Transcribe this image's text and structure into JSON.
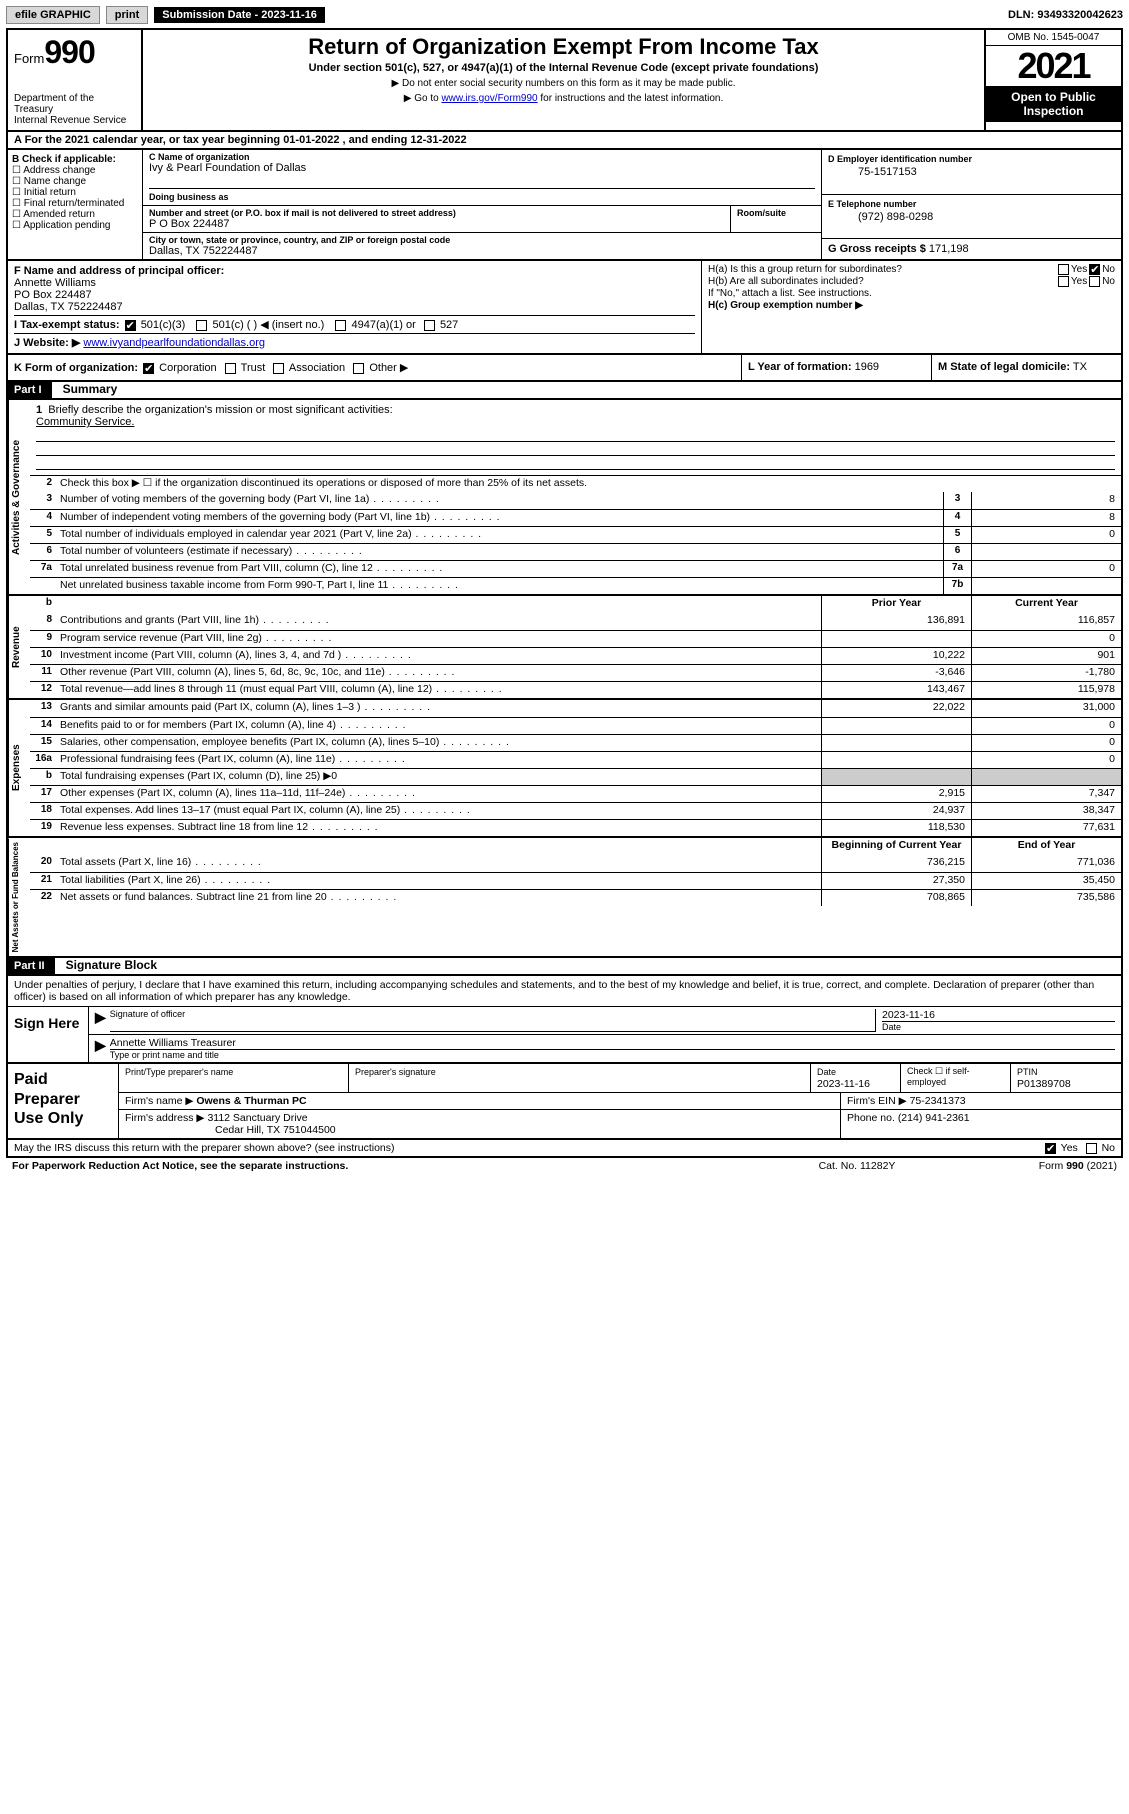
{
  "topbar": {
    "efile": "efile GRAPHIC",
    "print": "print",
    "sub_label": "Submission Date - 2023-11-16",
    "dln": "DLN: 93493320042623"
  },
  "header": {
    "form_word": "Form",
    "form_num": "990",
    "dept": "Department of the Treasury\nInternal Revenue Service",
    "title": "Return of Organization Exempt From Income Tax",
    "sub1": "Under section 501(c), 527, or 4947(a)(1) of the Internal Revenue Code (except private foundations)",
    "sub2": "▶ Do not enter social security numbers on this form as it may be made public.",
    "sub3_pre": "▶ Go to ",
    "sub3_link": "www.irs.gov/Form990",
    "sub3_post": " for instructions and the latest information.",
    "omb": "OMB No. 1545-0047",
    "year": "2021",
    "open": "Open to Public Inspection"
  },
  "lineA": {
    "text": "A For the 2021 calendar year, or tax year beginning 01-01-2022   , and ending 12-31-2022"
  },
  "blockB": {
    "label": "B Check if applicable:",
    "opts": [
      "Address change",
      "Name change",
      "Initial return",
      "Final return/terminated",
      "Amended return",
      "Application pending"
    ]
  },
  "blockC": {
    "name_lbl": "C Name of organization",
    "name": "Ivy & Pearl Foundation of Dallas",
    "dba_lbl": "Doing business as",
    "addr_lbl": "Number and street (or P.O. box if mail is not delivered to street address)",
    "room_lbl": "Room/suite",
    "addr": "P O Box 224487",
    "city_lbl": "City or town, state or province, country, and ZIP or foreign postal code",
    "city": "Dallas, TX  752224487"
  },
  "blockD": {
    "ein_lbl": "D Employer identification number",
    "ein": "75-1517153",
    "tel_lbl": "E Telephone number",
    "tel": "(972) 898-0298",
    "gross_lbl": "G Gross receipts $",
    "gross": "171,198"
  },
  "blockF": {
    "lbl": "F Name and address of principal officer:",
    "l1": "Annette Williams",
    "l2": "PO Box 224487",
    "l3": "Dallas, TX  752224487"
  },
  "blockH": {
    "ha": "H(a)  Is this a group return for subordinates?",
    "hb": "H(b)  Are all subordinates included?",
    "hc": "H(c)  Group exemption number ▶",
    "note": "If \"No,\" attach a list. See instructions."
  },
  "lineI": {
    "lbl": "I   Tax-exempt status:",
    "opt1": "501(c)(3)",
    "opt2": "501(c) (  ) ◀ (insert no.)",
    "opt3": "4947(a)(1) or",
    "opt4": "527"
  },
  "lineJ": {
    "lbl": "J   Website: ▶",
    "val": "www.ivyandpearlfoundationdallas.org"
  },
  "lineK": {
    "lbl": "K Form of organization:",
    "opts": [
      "Corporation",
      "Trust",
      "Association",
      "Other ▶"
    ]
  },
  "lineL": {
    "lbl": "L Year of formation:",
    "val": "1969"
  },
  "lineM": {
    "lbl": "M State of legal domicile:",
    "val": "TX"
  },
  "part1": {
    "hdr": "Part I",
    "title": "Summary",
    "l1": "Briefly describe the organization's mission or most significant activities:",
    "mission": "Community Service.",
    "l2": "Check this box ▶ ☐  if the organization discontinued its operations or disposed of more than 25% of its net assets.",
    "py_hdr": "Prior Year",
    "cy_hdr": "Current Year",
    "boy_hdr": "Beginning of Current Year",
    "eoy_hdr": "End of Year"
  },
  "rows_gov": [
    {
      "n": "3",
      "d": "Number of voting members of the governing body (Part VI, line 1a)",
      "k": "3",
      "v": "8"
    },
    {
      "n": "4",
      "d": "Number of independent voting members of the governing body (Part VI, line 1b)",
      "k": "4",
      "v": "8"
    },
    {
      "n": "5",
      "d": "Total number of individuals employed in calendar year 2021 (Part V, line 2a)",
      "k": "5",
      "v": "0"
    },
    {
      "n": "6",
      "d": "Total number of volunteers (estimate if necessary)",
      "k": "6",
      "v": ""
    },
    {
      "n": "7a",
      "d": "Total unrelated business revenue from Part VIII, column (C), line 12",
      "k": "7a",
      "v": "0"
    },
    {
      "n": "",
      "d": "Net unrelated business taxable income from Form 990-T, Part I, line 11",
      "k": "7b",
      "v": ""
    }
  ],
  "rows_rev": [
    {
      "n": "8",
      "d": "Contributions and grants (Part VIII, line 1h)",
      "v1": "136,891",
      "v2": "116,857"
    },
    {
      "n": "9",
      "d": "Program service revenue (Part VIII, line 2g)",
      "v1": "",
      "v2": "0"
    },
    {
      "n": "10",
      "d": "Investment income (Part VIII, column (A), lines 3, 4, and 7d )",
      "v1": "10,222",
      "v2": "901"
    },
    {
      "n": "11",
      "d": "Other revenue (Part VIII, column (A), lines 5, 6d, 8c, 9c, 10c, and 11e)",
      "v1": "-3,646",
      "v2": "-1,780"
    },
    {
      "n": "12",
      "d": "Total revenue—add lines 8 through 11 (must equal Part VIII, column (A), line 12)",
      "v1": "143,467",
      "v2": "115,978"
    }
  ],
  "rows_exp": [
    {
      "n": "13",
      "d": "Grants and similar amounts paid (Part IX, column (A), lines 1–3 )",
      "v1": "22,022",
      "v2": "31,000"
    },
    {
      "n": "14",
      "d": "Benefits paid to or for members (Part IX, column (A), line 4)",
      "v1": "",
      "v2": "0"
    },
    {
      "n": "15",
      "d": "Salaries, other compensation, employee benefits (Part IX, column (A), lines 5–10)",
      "v1": "",
      "v2": "0"
    },
    {
      "n": "16a",
      "d": "Professional fundraising fees (Part IX, column (A), line 11e)",
      "v1": "",
      "v2": "0"
    },
    {
      "n": "b",
      "d": "Total fundraising expenses (Part IX, column (D), line 25) ▶0",
      "grey": true
    },
    {
      "n": "17",
      "d": "Other expenses (Part IX, column (A), lines 11a–11d, 11f–24e)",
      "v1": "2,915",
      "v2": "7,347"
    },
    {
      "n": "18",
      "d": "Total expenses. Add lines 13–17 (must equal Part IX, column (A), line 25)",
      "v1": "24,937",
      "v2": "38,347"
    },
    {
      "n": "19",
      "d": "Revenue less expenses. Subtract line 18 from line 12",
      "v1": "118,530",
      "v2": "77,631"
    }
  ],
  "rows_net": [
    {
      "n": "20",
      "d": "Total assets (Part X, line 16)",
      "v1": "736,215",
      "v2": "771,036"
    },
    {
      "n": "21",
      "d": "Total liabilities (Part X, line 26)",
      "v1": "27,350",
      "v2": "35,450"
    },
    {
      "n": "22",
      "d": "Net assets or fund balances. Subtract line 21 from line 20",
      "v1": "708,865",
      "v2": "735,586"
    }
  ],
  "part2": {
    "hdr": "Part II",
    "title": "Signature Block",
    "decl": "Under penalties of perjury, I declare that I have examined this return, including accompanying schedules and statements, and to the best of my knowledge and belief, it is true, correct, and complete. Declaration of preparer (other than officer) is based on all information of which preparer has any knowledge."
  },
  "sign": {
    "left": "Sign Here",
    "sig_lbl": "Signature of officer",
    "date_lbl": "Date",
    "date": "2023-11-16",
    "name": "Annette Williams  Treasurer",
    "name_lbl": "Type or print name and title"
  },
  "prep": {
    "left": "Paid Preparer Use Only",
    "h1": "Print/Type preparer's name",
    "h2": "Preparer's signature",
    "h3": "Date",
    "h3v": "2023-11-16",
    "h4": "Check ☐ if self-employed",
    "h5": "PTIN",
    "h5v": "P01389708",
    "firm_lbl": "Firm's name    ▶",
    "firm": "Owens & Thurman PC",
    "ein_lbl": "Firm's EIN ▶",
    "ein": "75-2341373",
    "addr_lbl": "Firm's address ▶",
    "addr1": "3112 Sanctuary Drive",
    "addr2": "Cedar Hill, TX  751044500",
    "phone_lbl": "Phone no.",
    "phone": "(214) 941-2361"
  },
  "footer": {
    "q": "May the IRS discuss this return with the preparer shown above? (see instructions)",
    "pra": "For Paperwork Reduction Act Notice, see the separate instructions.",
    "cat": "Cat. No. 11282Y",
    "form": "Form 990 (2021)"
  },
  "vtabs": {
    "gov": "Activities & Governance",
    "rev": "Revenue",
    "exp": "Expenses",
    "net": "Net Assets or Fund Balances"
  }
}
